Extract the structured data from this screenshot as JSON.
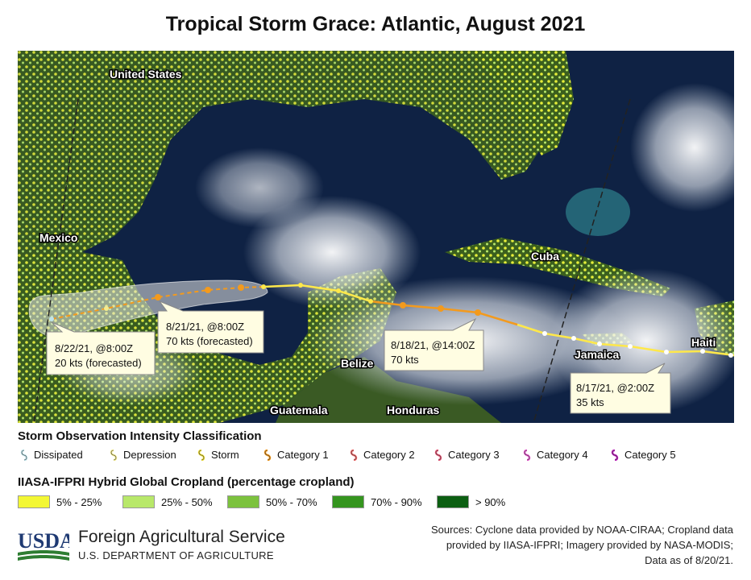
{
  "title": "Tropical Storm Grace: Atlantic, August 2021",
  "map": {
    "place_labels": [
      {
        "name": "united-states",
        "text": "United States"
      },
      {
        "name": "mexico",
        "text": "Mexico"
      },
      {
        "name": "cuba",
        "text": "Cuba"
      },
      {
        "name": "haiti",
        "text": "Haiti"
      },
      {
        "name": "jamaica",
        "text": "Jamaica"
      },
      {
        "name": "belize",
        "text": "Belize"
      },
      {
        "name": "guatemala",
        "text": "Guatemala"
      },
      {
        "name": "honduras",
        "text": "Honduras"
      }
    ],
    "callouts": [
      {
        "name": "callout-8-22",
        "date": "8/22/21, @8:00Z",
        "detail": "20 kts (forecasted)"
      },
      {
        "name": "callout-8-21",
        "date": "8/21/21, @8:00Z",
        "detail": "70 kts (forecasted)"
      },
      {
        "name": "callout-8-18",
        "date": "8/18/21, @14:00Z",
        "detail": "70 kts"
      },
      {
        "name": "callout-8-17",
        "date": "8/17/21, @2:00Z",
        "detail": "35 kts"
      }
    ],
    "colors": {
      "ocean": "#0c1a38",
      "land": "#2d4a1e",
      "crop_low": "#e6ee3a",
      "track_storm": "#ffe84a",
      "track_cat1": "#f39a1d",
      "cone": "#e8e8e8"
    }
  },
  "legend": {
    "storm_title": "Storm Observation Intensity Classification",
    "storm_items": [
      {
        "label": "Dissipated",
        "color": "#bfe3ea"
      },
      {
        "label": "Depression",
        "color": "#f4ec8e"
      },
      {
        "label": "Storm",
        "color": "#f2e23c"
      },
      {
        "label": "Category 1",
        "color": "#f59a1d"
      },
      {
        "label": "Category 2",
        "color": "#f36b6b"
      },
      {
        "label": "Category 3",
        "color": "#ee5a7a"
      },
      {
        "label": "Category 4",
        "color": "#e85ad0"
      },
      {
        "label": "Category 5",
        "color": "#c21fc2"
      }
    ],
    "crop_title": "IIASA-IFPRI Hybrid Global Cropland (percentage cropland)",
    "crop_items": [
      {
        "label": "5% - 25%",
        "color": "#f3f734"
      },
      {
        "label": "25% - 50%",
        "color": "#b8e86a"
      },
      {
        "label": "50% - 70%",
        "color": "#7cc23e"
      },
      {
        "label": "70% - 90%",
        "color": "#35951f"
      },
      {
        "label": "> 90%",
        "color": "#0c5f12"
      }
    ]
  },
  "footer": {
    "logo_text": "USDA",
    "agency": "Foreign Agricultural Service",
    "department": "U.S. DEPARTMENT OF AGRICULTURE",
    "sources_line1": "Sources: Cyclone data provided by NOAA-CIRAA; Cropland data",
    "sources_line2": "provided by IIASA-IFPRI; Imagery provided by NASA-MODIS;",
    "sources_line3": "Data as of 8/20/21."
  }
}
